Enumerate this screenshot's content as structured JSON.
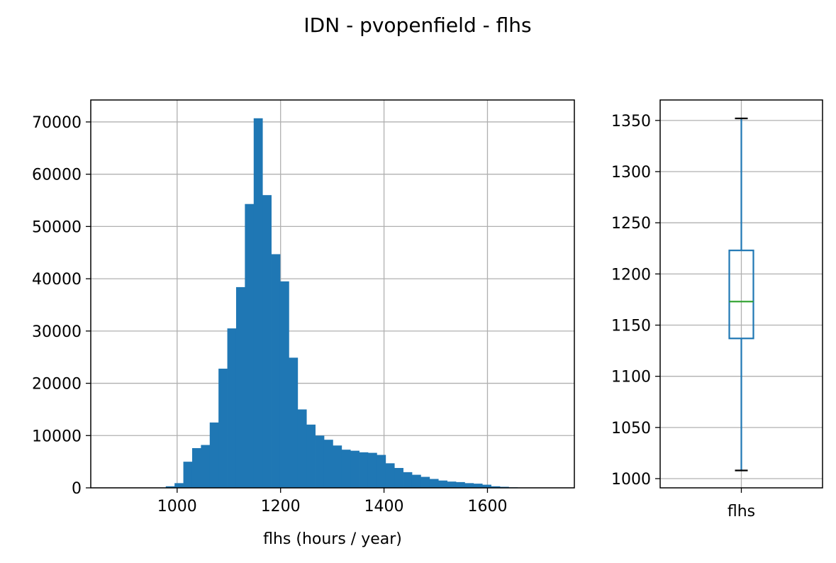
{
  "figure": {
    "title": "IDN - pvopenfield - flhs"
  },
  "chart_data": [
    {
      "type": "bar",
      "subtype": "histogram",
      "xlabel": "flhs (hours / year)",
      "ylabel": "",
      "xlim": [
        833,
        1768
      ],
      "ylim": [
        0,
        74200
      ],
      "xticks": [
        1000,
        1200,
        1400,
        1600
      ],
      "yticks": [
        0,
        10000,
        20000,
        30000,
        40000,
        50000,
        60000,
        70000
      ],
      "grid": true,
      "bar_color": "#1f77b4",
      "bin_width": 17,
      "bins_start": [
        978,
        995,
        1012,
        1029,
        1046,
        1063,
        1080,
        1097,
        1114,
        1131,
        1148,
        1165,
        1182,
        1199,
        1216,
        1233,
        1250,
        1267,
        1284,
        1301,
        1318,
        1335,
        1352,
        1369,
        1386,
        1403,
        1420,
        1437,
        1454,
        1471,
        1488,
        1505,
        1522,
        1539,
        1556,
        1573,
        1590,
        1607,
        1624,
        1641,
        1658
      ],
      "values": [
        300,
        900,
        5000,
        7600,
        8200,
        12500,
        22800,
        30500,
        38400,
        54300,
        70700,
        56000,
        44700,
        39500,
        24900,
        15000,
        12100,
        10000,
        9200,
        8100,
        7300,
        7100,
        6800,
        6700,
        6300,
        4700,
        3800,
        3000,
        2500,
        2100,
        1700,
        1400,
        1200,
        1100,
        900,
        800,
        600,
        300,
        200,
        100,
        50
      ]
    },
    {
      "type": "box",
      "category": "flhs",
      "ylim": [
        991,
        1370
      ],
      "yticks": [
        1000,
        1050,
        1100,
        1150,
        1200,
        1250,
        1300,
        1350
      ],
      "grid": true,
      "whisker_low": 1008,
      "q1": 1137,
      "median": 1173,
      "q3": 1223,
      "whisker_high": 1352,
      "box_color": "#1f77b4",
      "median_color": "#2ca02c",
      "cap_color": "#000000"
    }
  ]
}
